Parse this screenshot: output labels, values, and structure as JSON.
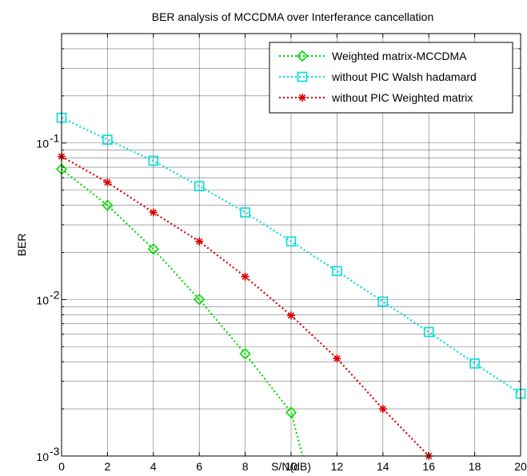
{
  "chart_data": {
    "type": "line",
    "title": "BER analysis of MCCDMA over Interferance cancellation",
    "xlabel": "S/N(dB)",
    "ylabel": "BER",
    "xlim": [
      0,
      20
    ],
    "ylim": [
      0.001,
      0.5
    ],
    "yscale": "log",
    "grid": true,
    "legend_position": "top-right",
    "x_ticks": [
      "0",
      "2",
      "4",
      "6",
      "8",
      "10",
      "12",
      "14",
      "16",
      "18",
      "20"
    ],
    "y_ticks": [
      {
        "value": 0.1,
        "base": "10",
        "exp": "-1"
      },
      {
        "value": 0.01,
        "base": "10",
        "exp": "-2"
      },
      {
        "value": 0.001,
        "base": "10",
        "exp": "-3"
      }
    ],
    "series": [
      {
        "name": "Weighted matrix-MCCDMA",
        "color": "#00dd00",
        "marker": "diamond",
        "x": [
          0,
          2,
          4,
          6,
          8,
          10,
          10.5
        ],
        "y": [
          0.068,
          0.04,
          0.021,
          0.01,
          0.0045,
          0.0019,
          0.001
        ],
        "markers_upto": 6
      },
      {
        "name": "without PIC Walsh hadamard",
        "color": "#00dddd",
        "marker": "square",
        "x": [
          0,
          2,
          4,
          6,
          8,
          10,
          12,
          14,
          16,
          18,
          20
        ],
        "y": [
          0.145,
          0.105,
          0.077,
          0.053,
          0.036,
          0.0235,
          0.0152,
          0.0097,
          0.0062,
          0.0039,
          0.0025
        ],
        "markers_upto": 11
      },
      {
        "name": "without PIC Weighted matrix",
        "color": "#dd0000",
        "marker": "star",
        "x": [
          0,
          2,
          4,
          6,
          8,
          10,
          12,
          14,
          16
        ],
        "y": [
          0.082,
          0.056,
          0.036,
          0.0235,
          0.014,
          0.0079,
          0.0042,
          0.002,
          0.001
        ],
        "markers_upto": 9
      }
    ]
  }
}
